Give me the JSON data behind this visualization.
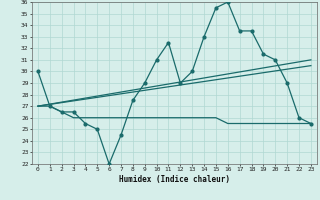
{
  "title": "",
  "xlabel": "Humidex (Indice chaleur)",
  "ylabel": "",
  "ylim": [
    22,
    36
  ],
  "xlim": [
    -0.5,
    23.5
  ],
  "yticks": [
    22,
    23,
    24,
    25,
    26,
    27,
    28,
    29,
    30,
    31,
    32,
    33,
    34,
    35,
    36
  ],
  "xticks": [
    0,
    1,
    2,
    3,
    4,
    5,
    6,
    7,
    8,
    9,
    10,
    11,
    12,
    13,
    14,
    15,
    16,
    17,
    18,
    19,
    20,
    21,
    22,
    23
  ],
  "bg_color": "#d6eeea",
  "grid_color": "#b0d8d2",
  "line_color": "#1a6b6b",
  "line1_x": [
    0,
    1,
    2,
    3,
    4,
    5,
    6,
    7,
    8,
    9,
    10,
    11,
    12,
    13,
    14,
    15,
    16,
    17,
    18,
    19,
    20,
    21,
    22,
    23
  ],
  "line1_y": [
    30,
    27,
    26.5,
    26.5,
    25.5,
    25,
    22,
    24.5,
    27.5,
    29,
    31,
    32.5,
    29,
    30,
    33,
    35.5,
    36,
    33.5,
    33.5,
    31.5,
    31,
    29,
    26,
    25.5
  ],
  "line2_x": [
    0,
    1,
    2,
    3,
    4,
    5,
    6,
    7,
    8,
    9,
    10,
    11,
    12,
    13,
    14,
    15,
    16,
    17,
    18,
    19,
    20,
    21,
    22,
    23
  ],
  "line2_y": [
    27,
    27,
    26.5,
    26,
    26,
    26,
    26,
    26,
    26,
    26,
    26,
    26,
    26,
    26,
    26,
    26,
    25.5,
    25.5,
    25.5,
    25.5,
    25.5,
    25.5,
    25.5,
    25.5
  ],
  "line3_x": [
    0,
    23
  ],
  "line3_y": [
    27,
    31
  ],
  "line4_x": [
    0,
    23
  ],
  "line4_y": [
    27,
    30.5
  ],
  "figsize": [
    3.2,
    2.0
  ],
  "dpi": 100
}
